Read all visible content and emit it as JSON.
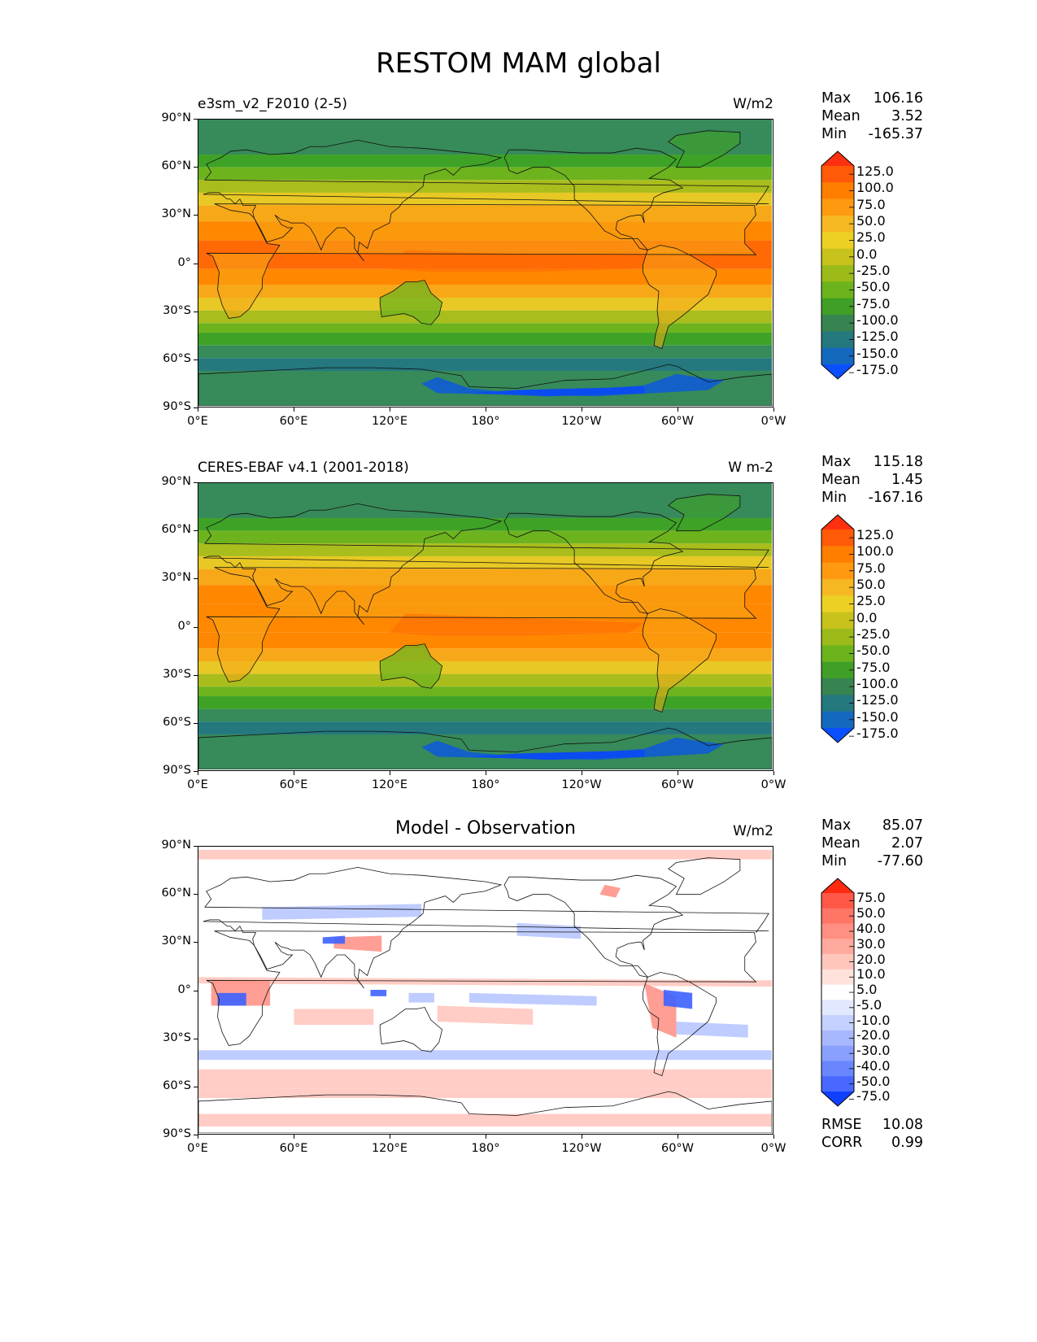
{
  "title": "RESTOM MAM global",
  "lat_labels": [
    "90°N",
    "60°N",
    "30°N",
    "0°",
    "30°S",
    "60°S",
    "90°S"
  ],
  "lon_labels": [
    "0°E",
    "60°E",
    "120°E",
    "180°",
    "120°W",
    "60°W",
    "0°W"
  ],
  "panels": [
    {
      "label": "e3sm_v2_F2010 (2-5)",
      "title": "",
      "units": "W/m2",
      "stats": {
        "max_label": "Max",
        "max": "106.16",
        "mean_label": "Mean",
        "mean": "3.52",
        "min_label": "Min",
        "min": "-165.37"
      },
      "colorbar": {
        "levels": [
          "125.0",
          "100.0",
          "75.0",
          "50.0",
          "25.0",
          "0.0",
          "-25.0",
          "-50.0",
          "-75.0",
          "-100.0",
          "-125.0",
          "-150.0",
          "-175.0"
        ],
        "colors": [
          "#ff3010",
          "#ff5a08",
          "#ff7e00",
          "#ff9a10",
          "#f5b822",
          "#ecd024",
          "#c8c21c",
          "#9cbb1a",
          "#6db31e",
          "#3f9f26",
          "#378450",
          "#24787e",
          "#1468be",
          "#0a50ff"
        ]
      },
      "extra": []
    },
    {
      "label": "CERES-EBAF v4.1 (2001-2018)",
      "title": "",
      "units": "W m-2",
      "stats": {
        "max_label": "Max",
        "max": "115.18",
        "mean_label": "Mean",
        "mean": "1.45",
        "min_label": "Min",
        "min": "-167.16"
      },
      "colorbar": {
        "levels": [
          "125.0",
          "100.0",
          "75.0",
          "50.0",
          "25.0",
          "0.0",
          "-25.0",
          "-50.0",
          "-75.0",
          "-100.0",
          "-125.0",
          "-150.0",
          "-175.0"
        ],
        "colors": [
          "#ff3010",
          "#ff5a08",
          "#ff7e00",
          "#ff9a10",
          "#f5b822",
          "#ecd024",
          "#c8c21c",
          "#9cbb1a",
          "#6db31e",
          "#3f9f26",
          "#378450",
          "#24787e",
          "#1468be",
          "#0a50ff"
        ]
      },
      "extra": []
    },
    {
      "label": "",
      "title": "Model - Observation",
      "units": "W/m2",
      "stats": {
        "max_label": "Max",
        "max": "85.07",
        "mean_label": "Mean",
        "mean": "2.07",
        "min_label": "Min",
        "min": "-77.60"
      },
      "colorbar": {
        "levels": [
          "75.0",
          "50.0",
          "40.0",
          "30.0",
          "20.0",
          "10.0",
          "5.0",
          "-5.0",
          "-10.0",
          "-20.0",
          "-30.0",
          "-40.0",
          "-50.0",
          "-75.0"
        ],
        "colors": [
          "#ff2a10",
          "#ff5848",
          "#ff7566",
          "#ff8f82",
          "#ffaa9e",
          "#ffc6bc",
          "#ffe2dc",
          "#ffffff",
          "#e2e8ff",
          "#c4d0ff",
          "#a8b8ff",
          "#8aa0ff",
          "#6a86ff",
          "#4868ff",
          "#1040ff"
        ]
      },
      "extra": [
        {
          "label": "RMSE",
          "value": "10.08"
        },
        {
          "label": "CORR",
          "value": "0.99"
        }
      ]
    }
  ],
  "field_colors": {
    "polar": "#378a5a",
    "green": "#3ea226",
    "lightgreen": "#6db31e",
    "olive": "#a9bd1c",
    "yellow": "#e8c824",
    "amber": "#f7a818",
    "orange": "#ff8800",
    "deeporange": "#ff6a06",
    "teal": "#24787e",
    "blue": "#1260c8",
    "deepblue": "#0a4cf0",
    "diff_red": "#ff9488",
    "diff_pink": "#ffc8bf",
    "diff_blue": "#b8c6ff",
    "diff_deepblue": "#3d62ff"
  },
  "icons": [
    "coastline-map"
  ]
}
